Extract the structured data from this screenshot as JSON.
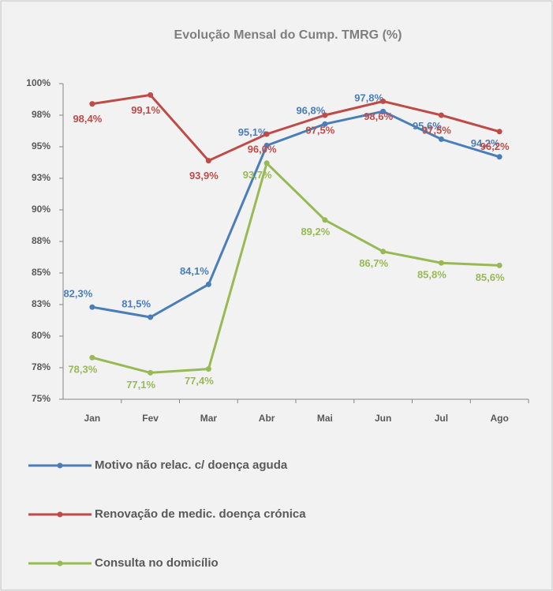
{
  "chart_data": {
    "type": "line",
    "title": "Evolução Mensal do Cump. TMRG (%)",
    "categories": [
      "Jan",
      "Fev",
      "Mar",
      "Abr",
      "Mai",
      "Jun",
      "Jul",
      "Ago"
    ],
    "series": [
      {
        "name": "Motivo não relac. c/ doença aguda",
        "color": "#4a7ebb",
        "values": [
          82.3,
          81.5,
          84.1,
          95.1,
          96.8,
          97.8,
          95.6,
          94.2
        ],
        "value_labels": [
          "82,3%",
          "81,5%",
          "84,1%",
          "95,1%",
          "96,8%",
          "97,8%",
          "95,6%",
          "94,2%"
        ]
      },
      {
        "name": "Renovação de medic. doença crónica",
        "color": "#be4b48",
        "values": [
          98.4,
          99.1,
          93.9,
          96.0,
          97.5,
          98.6,
          97.5,
          96.2
        ],
        "value_labels": [
          "98,4%",
          "99,1%",
          "93,9%",
          "96,0%",
          "97,5%",
          "98,6%",
          "97,5%",
          "96,2%"
        ]
      },
      {
        "name": "Consulta no domicílio",
        "color": "#98b954",
        "values": [
          78.3,
          77.1,
          77.4,
          93.7,
          89.2,
          86.7,
          85.8,
          85.6
        ],
        "value_labels": [
          "78,3%",
          "77,1%",
          "77,4%",
          "93,7%",
          "89,2%",
          "86,7%",
          "85,8%",
          "85,6%"
        ]
      }
    ],
    "ylim": [
      75,
      100
    ],
    "yticks": [
      {
        "value": 75,
        "label": "75%"
      },
      {
        "value": 77.5,
        "label": "78%"
      },
      {
        "value": 80,
        "label": "80%"
      },
      {
        "value": 82.5,
        "label": "83%"
      },
      {
        "value": 85,
        "label": "85%"
      },
      {
        "value": 87.5,
        "label": "88%"
      },
      {
        "value": 90,
        "label": "90%"
      },
      {
        "value": 92.5,
        "label": "93%"
      },
      {
        "value": 95,
        "label": "95%"
      },
      {
        "value": 97.5,
        "label": "98%"
      },
      {
        "value": 100,
        "label": "100%"
      }
    ],
    "legend": "bottom"
  }
}
